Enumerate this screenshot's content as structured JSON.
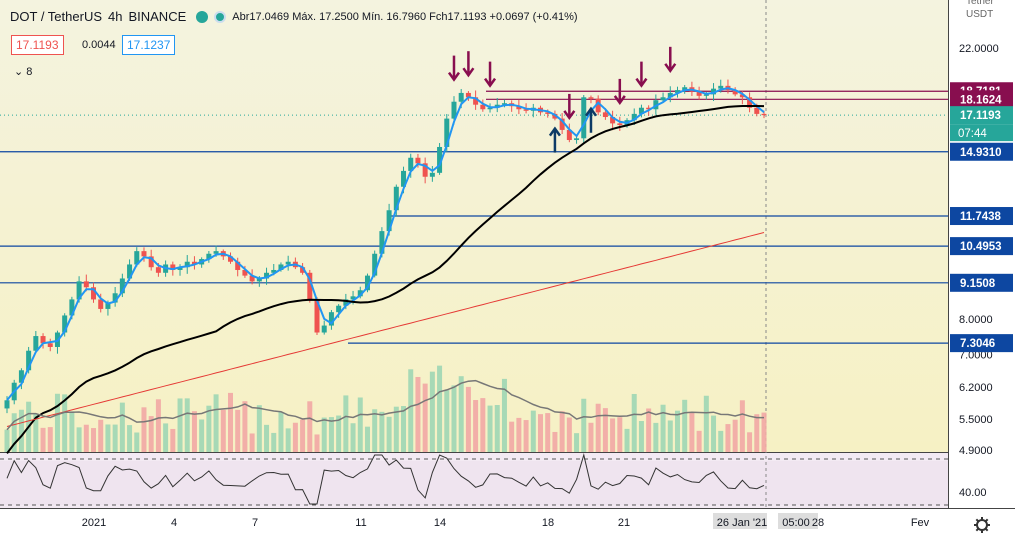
{
  "header": {
    "symbol": "DOT / TetherUS",
    "interval": "4h",
    "exchange": "BINANCE",
    "ohlc": "Abr17.0469  Máx. 17.2500  Mín. 16.7960  Fch17.1193  +0.0697 (+0.41%)"
  },
  "quote": {
    "sell": "17.1193",
    "spread": "0.0044",
    "buy": "17.1237"
  },
  "indicators_toggle": {
    "label": "8",
    "icon": "chevron-icon"
  },
  "axis": {
    "currency_top": "Tether\nUSDT",
    "ticks": [
      {
        "v": 22.0,
        "label": "22.0000"
      },
      {
        "v": 8.0,
        "label": "8.0000"
      },
      {
        "v": 7.0,
        "label": "7.0000"
      },
      {
        "v": 6.2,
        "label": "6.2000"
      },
      {
        "v": 5.5,
        "label": "5.5000"
      },
      {
        "v": 4.9,
        "label": "4.9000"
      }
    ],
    "rsi_tick": "40.00"
  },
  "price_labels": [
    {
      "v": 18.7181,
      "label": "18.7181",
      "bg": "#880e4f",
      "fg": "#ffffff"
    },
    {
      "v": 18.1624,
      "label": "18.1624",
      "bg": "#880e4f",
      "fg": "#ffffff"
    },
    {
      "v": 17.1193,
      "label": "17.1193",
      "bg": "#26a69a",
      "fg": "#ffffff",
      "sub": "07:44"
    },
    {
      "v": 14.931,
      "label": "14.9310",
      "bg": "#0d47a1",
      "fg": "#ffffff"
    },
    {
      "v": 11.7438,
      "label": "11.7438",
      "bg": "#0d47a1",
      "fg": "#ffffff"
    },
    {
      "v": 10.4953,
      "label": "10.4953",
      "bg": "#0d47a1",
      "fg": "#ffffff"
    },
    {
      "v": 9.1508,
      "label": "9.1508",
      "bg": "#0d47a1",
      "fg": "#ffffff"
    },
    {
      "v": 7.3046,
      "label": "7.3046",
      "bg": "#0d47a1",
      "fg": "#ffffff"
    }
  ],
  "time_axis": {
    "labels": [
      "2021",
      "4",
      "7",
      "11",
      "14",
      "18",
      "21",
      "26 Jan '21",
      "05:00",
      "28",
      "Fev"
    ],
    "settings_icon": "gear-icon"
  },
  "colors": {
    "bull": "#26a69a",
    "bear": "#ef5350",
    "ema_fast": "#2196f3",
    "ma_mid": "#000000",
    "ma_slow": "#e53935",
    "resist": "#880e4f",
    "support": "#0d47a1",
    "arrow_down": "#880e4f",
    "arrow_up": "#0d3b66"
  },
  "chart_data": {
    "type": "candlestick",
    "scale": "log",
    "period_label": "4h",
    "support_lines": [
      14.931,
      11.7438,
      10.4953,
      9.1508,
      7.3046
    ],
    "resistance_lines": [
      18.7181,
      18.1624
    ],
    "last_price": 17.1193,
    "closes": [
      5.9,
      6.3,
      6.6,
      7.1,
      7.5,
      7.3,
      7.2,
      7.6,
      8.1,
      8.6,
      9.2,
      9.0,
      8.6,
      8.3,
      8.5,
      8.8,
      9.3,
      9.8,
      10.3,
      10.1,
      9.7,
      9.5,
      9.8,
      9.6,
      9.7,
      9.9,
      9.8,
      10.0,
      10.2,
      10.3,
      10.1,
      9.9,
      9.6,
      9.4,
      9.2,
      9.3,
      9.5,
      9.6,
      9.8,
      9.9,
      9.7,
      9.5,
      8.6,
      7.6,
      7.8,
      8.2,
      8.4,
      8.6,
      8.7,
      8.9,
      9.4,
      10.2,
      11.1,
      12.0,
      13.1,
      13.9,
      14.6,
      14.3,
      13.6,
      13.8,
      15.2,
      16.9,
      18.0,
      18.6,
      18.3,
      17.8,
      17.5,
      17.6,
      17.8,
      17.9,
      17.7,
      17.5,
      17.4,
      17.6,
      17.3,
      17.2,
      16.9,
      16.2,
      15.6,
      15.7,
      18.3,
      18.2,
      17.3,
      17.0,
      16.6,
      16.5,
      16.8,
      17.2,
      17.6,
      17.5,
      18.1,
      18.3,
      18.6,
      18.8,
      19.0,
      18.7,
      18.4,
      18.5,
      18.9,
      19.1,
      18.8,
      18.5,
      18.3,
      17.6,
      17.2,
      17.1193
    ],
    "arrows_down_at": [
      62,
      64,
      67,
      78,
      85,
      88,
      92
    ],
    "arrows_up_at": [
      76,
      81
    ]
  }
}
